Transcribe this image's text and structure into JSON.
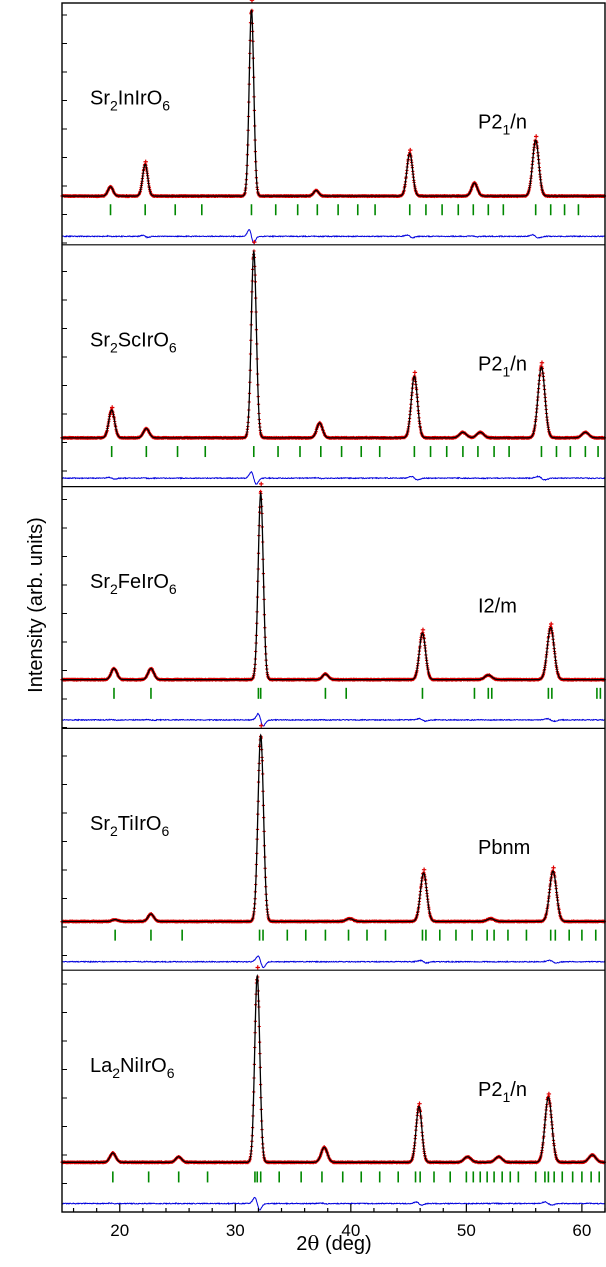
{
  "chart_data": {
    "type": "line",
    "xlabel_prefix": "2",
    "xlabel_theta": "θ",
    "xlabel_suffix": " (deg)",
    "ylabel": "Intensity (arb. units)",
    "xlim": [
      15,
      62
    ],
    "x_ticks": [
      20,
      30,
      40,
      50,
      60
    ],
    "colors": {
      "observed": "#dd0000",
      "calculated": "#000000",
      "difference": "#0000dd",
      "bragg": "#008800",
      "frame": "#000000"
    },
    "panels": [
      {
        "compound": {
          "parts": [
            [
              "Sr",
              ""
            ],
            [
              "2",
              "sub"
            ],
            [
              "InIrO",
              ""
            ],
            [
              "6",
              "sub"
            ]
          ]
        },
        "space_group": {
          "parts": [
            [
              "P2",
              ""
            ],
            [
              "1",
              "sub"
            ],
            [
              "/n",
              ""
            ]
          ]
        },
        "background": 0.015,
        "peaks": [
          {
            "x": 19.2,
            "h": 0.05,
            "w": 0.22
          },
          {
            "x": 22.2,
            "h": 0.17,
            "w": 0.22
          },
          {
            "x": 31.4,
            "h": 1.0,
            "w": 0.2
          },
          {
            "x": 37.0,
            "h": 0.03,
            "w": 0.22
          },
          {
            "x": 45.1,
            "h": 0.23,
            "w": 0.25
          },
          {
            "x": 50.7,
            "h": 0.07,
            "w": 0.25
          },
          {
            "x": 56.0,
            "h": 0.3,
            "w": 0.27
          }
        ],
        "bragg_positions": [
          19.2,
          22.2,
          24.8,
          27.1,
          31.4,
          33.5,
          35.4,
          37.1,
          38.9,
          40.6,
          42.1,
          45.1,
          46.5,
          47.9,
          49.3,
          50.6,
          51.9,
          53.2,
          56.0,
          57.3,
          58.5,
          59.7
        ]
      },
      {
        "compound": {
          "parts": [
            [
              "Sr",
              ""
            ],
            [
              "2",
              "sub"
            ],
            [
              "ScIrO",
              ""
            ],
            [
              "6",
              "sub"
            ]
          ]
        },
        "space_group": {
          "parts": [
            [
              "P2",
              ""
            ],
            [
              "1",
              "sub"
            ],
            [
              "/n",
              ""
            ]
          ]
        },
        "background": 0.015,
        "peaks": [
          {
            "x": 19.3,
            "h": 0.15,
            "w": 0.25
          },
          {
            "x": 22.3,
            "h": 0.05,
            "w": 0.25
          },
          {
            "x": 31.6,
            "h": 1.0,
            "w": 0.22
          },
          {
            "x": 37.3,
            "h": 0.08,
            "w": 0.25
          },
          {
            "x": 45.5,
            "h": 0.33,
            "w": 0.27
          },
          {
            "x": 49.7,
            "h": 0.03,
            "w": 0.3
          },
          {
            "x": 51.2,
            "h": 0.03,
            "w": 0.3
          },
          {
            "x": 56.5,
            "h": 0.38,
            "w": 0.3
          },
          {
            "x": 60.3,
            "h": 0.03,
            "w": 0.3
          }
        ],
        "bragg_positions": [
          19.3,
          22.3,
          25.0,
          27.4,
          31.6,
          33.7,
          35.6,
          37.4,
          39.2,
          40.9,
          42.5,
          45.5,
          46.9,
          48.3,
          49.7,
          51.0,
          52.4,
          53.7,
          56.5,
          57.8,
          59.0,
          60.3,
          61.4
        ]
      },
      {
        "compound": {
          "parts": [
            [
              "Sr",
              ""
            ],
            [
              "2",
              "sub"
            ],
            [
              "FeIrO",
              ""
            ],
            [
              "6",
              "sub"
            ]
          ]
        },
        "space_group": {
          "parts": [
            [
              "I2/m",
              ""
            ]
          ]
        },
        "background": 0.015,
        "peaks": [
          {
            "x": 19.5,
            "h": 0.06,
            "w": 0.25
          },
          {
            "x": 22.7,
            "h": 0.06,
            "w": 0.25
          },
          {
            "x": 32.2,
            "h": 1.0,
            "w": 0.22
          },
          {
            "x": 37.8,
            "h": 0.03,
            "w": 0.25
          },
          {
            "x": 46.2,
            "h": 0.25,
            "w": 0.27
          },
          {
            "x": 51.9,
            "h": 0.025,
            "w": 0.3
          },
          {
            "x": 57.3,
            "h": 0.28,
            "w": 0.3
          }
        ],
        "bragg_positions": [
          19.5,
          22.7,
          32.0,
          32.2,
          37.8,
          39.6,
          46.2,
          50.7,
          51.9,
          52.2,
          57.1,
          57.4,
          61.3,
          61.6
        ]
      },
      {
        "compound": {
          "parts": [
            [
              "Sr",
              ""
            ],
            [
              "2",
              "sub"
            ],
            [
              "TiIrO",
              ""
            ],
            [
              "6",
              "sub"
            ]
          ]
        },
        "space_group": {
          "parts": [
            [
              "Pbnm",
              ""
            ]
          ]
        },
        "background": 0.015,
        "peaks": [
          {
            "x": 19.6,
            "h": 0.01,
            "w": 0.25
          },
          {
            "x": 22.7,
            "h": 0.04,
            "w": 0.25
          },
          {
            "x": 32.2,
            "h": 1.0,
            "w": 0.24
          },
          {
            "x": 39.9,
            "h": 0.015,
            "w": 0.3
          },
          {
            "x": 46.3,
            "h": 0.26,
            "w": 0.28
          },
          {
            "x": 52.1,
            "h": 0.015,
            "w": 0.3
          },
          {
            "x": 57.5,
            "h": 0.27,
            "w": 0.3
          }
        ],
        "bragg_positions": [
          19.6,
          22.7,
          25.4,
          32.1,
          32.4,
          34.5,
          36.1,
          37.8,
          39.8,
          41.4,
          43.0,
          46.2,
          46.5,
          47.7,
          49.1,
          50.5,
          51.8,
          52.4,
          53.6,
          55.2,
          57.3,
          57.7,
          58.9,
          60.0,
          61.2
        ]
      },
      {
        "compound": {
          "parts": [
            [
              "La",
              ""
            ],
            [
              "2",
              "sub"
            ],
            [
              "NiIrO",
              ""
            ],
            [
              "6",
              "sub"
            ]
          ]
        },
        "space_group": {
          "parts": [
            [
              "P2",
              ""
            ],
            [
              "1",
              "sub"
            ],
            [
              "/n",
              ""
            ]
          ]
        },
        "background": 0.02,
        "peaks": [
          {
            "x": 19.4,
            "h": 0.05,
            "w": 0.25
          },
          {
            "x": 25.1,
            "h": 0.03,
            "w": 0.25
          },
          {
            "x": 31.9,
            "h": 1.0,
            "w": 0.22
          },
          {
            "x": 37.7,
            "h": 0.08,
            "w": 0.27
          },
          {
            "x": 45.9,
            "h": 0.3,
            "w": 0.25
          },
          {
            "x": 50.1,
            "h": 0.03,
            "w": 0.3
          },
          {
            "x": 52.8,
            "h": 0.03,
            "w": 0.3
          },
          {
            "x": 57.1,
            "h": 0.35,
            "w": 0.3
          },
          {
            "x": 60.9,
            "h": 0.04,
            "w": 0.3
          }
        ],
        "bragg_positions": [
          19.4,
          22.5,
          25.1,
          27.6,
          31.7,
          31.9,
          32.2,
          33.8,
          35.7,
          37.5,
          39.3,
          40.9,
          42.5,
          44.1,
          45.6,
          46.0,
          47.2,
          48.6,
          50.0,
          50.6,
          51.2,
          51.8,
          52.4,
          53.1,
          53.8,
          54.5,
          56.0,
          56.8,
          57.1,
          57.6,
          58.3,
          59.2,
          60.0,
          60.8,
          61.5
        ]
      }
    ]
  }
}
